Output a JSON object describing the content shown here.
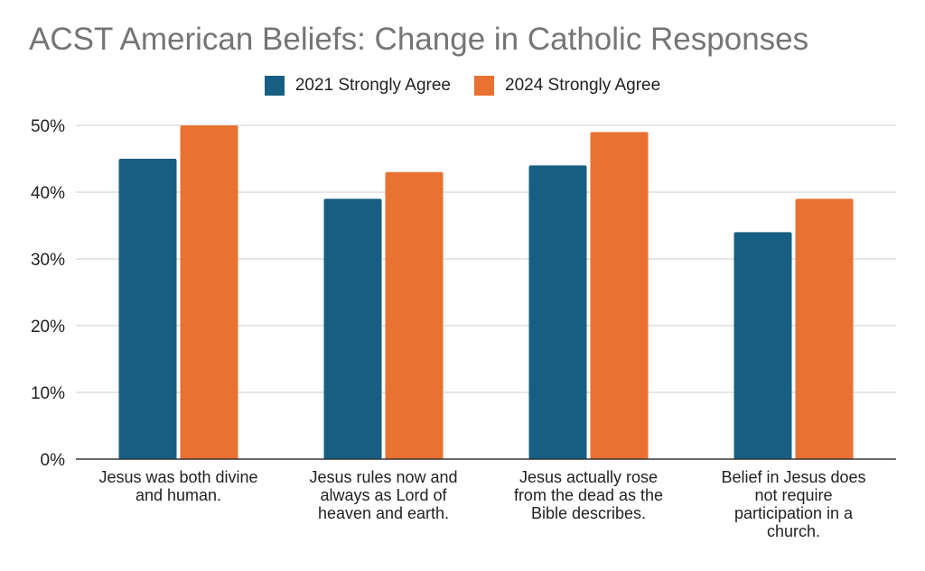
{
  "chart_data": {
    "type": "bar",
    "title": "ACST American Beliefs:  Change in Catholic Responses",
    "categories": [
      [
        "Jesus was both divine",
        "and human."
      ],
      [
        "Jesus rules now and",
        "always as Lord of",
        "heaven and earth."
      ],
      [
        "Jesus actually rose",
        "from the dead as the",
        "Bible describes."
      ],
      [
        "Belief in Jesus does",
        "not require",
        "participation in a",
        "church."
      ]
    ],
    "series": [
      {
        "name": "2021 Strongly Agree",
        "color": "#175f82",
        "values": [
          45,
          39,
          44,
          34
        ]
      },
      {
        "name": "2024 Strongly Agree",
        "color": "#e97131",
        "values": [
          50,
          43,
          49,
          39
        ]
      }
    ],
    "ylim": [
      0,
      50
    ],
    "yticks": [
      "0%",
      "10%",
      "20%",
      "30%",
      "40%",
      "50%"
    ],
    "ytick_values": [
      0,
      10,
      20,
      30,
      40,
      50
    ],
    "grid": true,
    "legend_position": "top-center"
  }
}
